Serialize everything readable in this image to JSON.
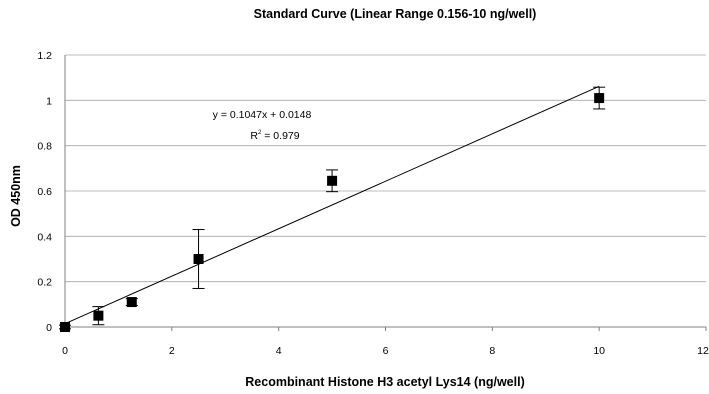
{
  "chart_data": {
    "type": "scatter",
    "title": "Standard Curve (Linear Range 0.156-10 ng/well)",
    "xlabel": "Recombinant Histone H3 acetyl Lys14 (ng/well)",
    "ylabel": "OD 450nm",
    "xlim": [
      0,
      12
    ],
    "ylim": [
      0,
      1.2
    ],
    "x_ticks": [
      "0",
      "2",
      "4",
      "6",
      "8",
      "10",
      "12"
    ],
    "y_ticks": [
      "0",
      "0.2",
      "0.4",
      "0.6",
      "0.8",
      "1",
      "1.2"
    ],
    "grid": "horizontal",
    "marker_color": "#000000",
    "points": [
      {
        "x": 0,
        "y": 0.0,
        "err": 0.008
      },
      {
        "x": 0.625,
        "y": 0.05,
        "err": 0.04
      },
      {
        "x": 1.25,
        "y": 0.11,
        "err": 0.015
      },
      {
        "x": 2.5,
        "y": 0.3,
        "err": 0.13
      },
      {
        "x": 5,
        "y": 0.645,
        "err": 0.048
      },
      {
        "x": 10,
        "y": 1.01,
        "err": 0.048
      }
    ],
    "trendline": {
      "slope": 0.1047,
      "intercept": 0.0148,
      "x_range": [
        0,
        10
      ]
    },
    "equation": "y = 0.1047x + 0.0148",
    "r_squared_label": "R",
    "r_squared_sup": "2",
    "r_squared_value": " = 0.979"
  }
}
